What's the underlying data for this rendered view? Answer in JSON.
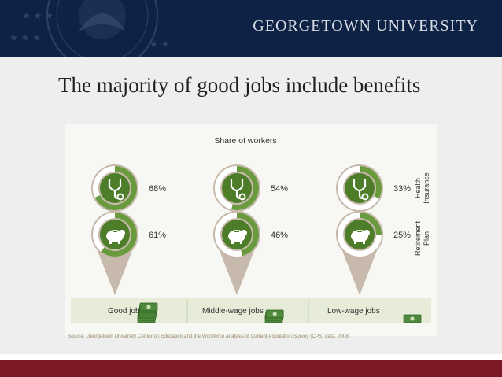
{
  "header": {
    "university": "GEORGETOWN UNIVERSITY"
  },
  "slide": {
    "title": "The majority of good jobs include benefits"
  },
  "chart_data": {
    "type": "donut",
    "title": "Share of workers",
    "categories": [
      "Good jobs",
      "Middle-wage jobs",
      "Low-wage jobs"
    ],
    "series": [
      {
        "name": "Health Insurance",
        "values": [
          68,
          54,
          33
        ],
        "labels": [
          "68%",
          "54%",
          "33%"
        ],
        "icon": "stethoscope-icon"
      },
      {
        "name": "Retirement Plan",
        "values": [
          61,
          46,
          25
        ],
        "labels": [
          "61%",
          "46%",
          "25%"
        ],
        "icon": "piggy-bank-icon"
      }
    ],
    "unit": "%",
    "max": 100,
    "row_labels": {
      "health": [
        "Health",
        "Insurance"
      ],
      "retirement": [
        "Retirement",
        "Plan"
      ]
    },
    "source": "Source: Georgetown University Center on Education and the Workforce analysis of    Current Population Survey (CPS)  data, 2008.",
    "colors": {
      "fill": "#6a9a3e",
      "track": "#ffffff",
      "pin_ring": "#c7b9ab",
      "inner": "#4d7d29",
      "category_bar": "#e6ecd8",
      "category_text": "#333333"
    }
  }
}
